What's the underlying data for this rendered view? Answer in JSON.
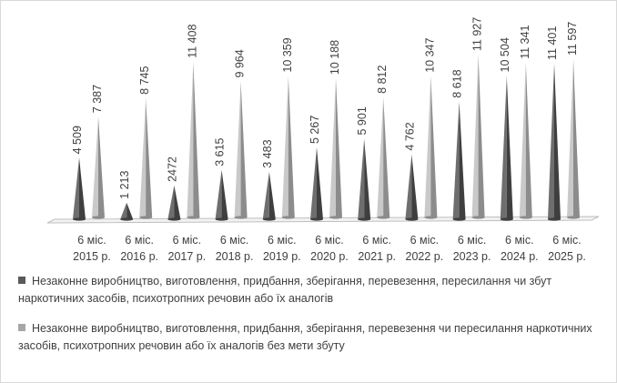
{
  "chart_data": {
    "type": "bar",
    "categories": [
      [
        "6 міс.",
        "2015 р."
      ],
      [
        "6 міс.",
        "2016 р."
      ],
      [
        "6 міс.",
        "2017 р."
      ],
      [
        "6 міс.",
        "2018 р."
      ],
      [
        "6 міс.",
        "2019 р."
      ],
      [
        "6 міс.",
        "2020 р."
      ],
      [
        "6 міс.",
        "2021 р."
      ],
      [
        "6 міс.",
        "2022 р."
      ],
      [
        "6 міс.",
        "2023 р."
      ],
      [
        "6 міс.",
        "2024 р."
      ],
      [
        "6 міс.",
        "2025 р."
      ]
    ],
    "series": [
      {
        "name": "Незаконне виробництво, виготовлення, придбання, зберігання, перевезення, пересилання чи збут наркотичних засобів, психотропних речовин або їх аналогів",
        "values": [
          4509,
          1213,
          2472,
          3615,
          3483,
          5267,
          5901,
          4762,
          8618,
          10504,
          11401
        ],
        "labels": [
          "4 509",
          "1 213",
          "2472",
          "3 615",
          "3 483",
          "5 267",
          "5 901",
          "4 762",
          "8 618",
          "10 504",
          "11 401"
        ],
        "color": "#595959"
      },
      {
        "name": "Незаконне виробництво, виготовлення, придбання, зберігання, перевезення чи пересилання наркотичних засобів, психотропних речовин або їх аналогів без мети збуту",
        "values": [
          7387,
          8745,
          11408,
          9964,
          10359,
          10188,
          8812,
          10347,
          11927,
          11341,
          11597
        ],
        "labels": [
          "7 387",
          "8 745",
          "11 408",
          "9 964",
          "10 359",
          "10 188",
          "8 812",
          "10 347",
          "11 927",
          "11 341",
          "11 597"
        ],
        "color": "#a6a6a6"
      }
    ],
    "legend_position": "bottom",
    "grid": false,
    "ylim": [
      0,
      12000
    ],
    "style": "3D cones"
  }
}
